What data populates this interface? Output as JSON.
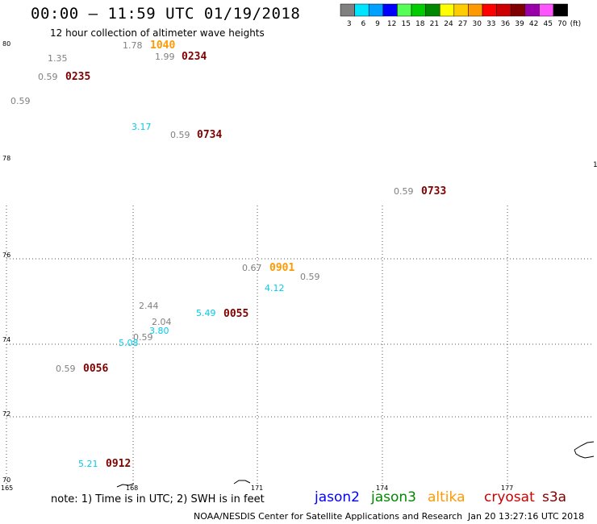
{
  "header": {
    "title": "00:00 – 11:59 UTC 01/19/2018",
    "subtitle": "12 hour collection of altimeter wave heights"
  },
  "legend": {
    "unit": "(ft)",
    "bins": [
      {
        "label": "3",
        "color": "#808080"
      },
      {
        "label": "6",
        "color": "#00e5ff"
      },
      {
        "label": "9",
        "color": "#00a0ff"
      },
      {
        "label": "12",
        "color": "#0000ff"
      },
      {
        "label": "15",
        "color": "#55ff55"
      },
      {
        "label": "18",
        "color": "#00cc00"
      },
      {
        "label": "21",
        "color": "#008800"
      },
      {
        "label": "24",
        "color": "#ffff00"
      },
      {
        "label": "27",
        "color": "#ffcc00"
      },
      {
        "label": "30",
        "color": "#ff9900"
      },
      {
        "label": "33",
        "color": "#ff0000"
      },
      {
        "label": "36",
        "color": "#cc0000"
      },
      {
        "label": "39",
        "color": "#800000"
      },
      {
        "label": "42",
        "color": "#9900aa"
      },
      {
        "label": "45",
        "color": "#ff55ff"
      },
      {
        "label": "70",
        "color": "#000000"
      }
    ]
  },
  "axes": {
    "lat_labels": [
      "80",
      "78",
      "76",
      "74",
      "72",
      "70"
    ],
    "lon_labels": [
      "165",
      "168",
      "171",
      "174",
      "177"
    ],
    "edge_label": "1"
  },
  "observations": [
    {
      "text": "1.78",
      "kind": "swh",
      "color": "#808080"
    },
    {
      "text": "1040",
      "kind": "time",
      "color": "#ff9900"
    },
    {
      "text": "1.35",
      "kind": "swh",
      "color": "#808080"
    },
    {
      "text": "1.99",
      "kind": "swh",
      "color": "#808080"
    },
    {
      "text": "0234",
      "kind": "time",
      "color": "#800000"
    },
    {
      "text": "0.59",
      "kind": "swh",
      "color": "#808080"
    },
    {
      "text": "0235",
      "kind": "time",
      "color": "#800000"
    },
    {
      "text": "0.59",
      "kind": "swh",
      "color": "#808080"
    },
    {
      "text": "3.17",
      "kind": "swh",
      "color": "#00ccee"
    },
    {
      "text": "0.59",
      "kind": "swh",
      "color": "#808080"
    },
    {
      "text": "0734",
      "kind": "time",
      "color": "#800000"
    },
    {
      "text": "0.59",
      "kind": "swh",
      "color": "#808080"
    },
    {
      "text": "0733",
      "kind": "time",
      "color": "#800000"
    },
    {
      "text": "0.67",
      "kind": "swh",
      "color": "#808080"
    },
    {
      "text": "0901",
      "kind": "time",
      "color": "#ff9900"
    },
    {
      "text": "0.59",
      "kind": "swh",
      "color": "#808080"
    },
    {
      "text": "4.12",
      "kind": "swh",
      "color": "#00ccee"
    },
    {
      "text": "2.44",
      "kind": "swh",
      "color": "#808080"
    },
    {
      "text": "5.49",
      "kind": "swh",
      "color": "#00ccee"
    },
    {
      "text": "0055",
      "kind": "time",
      "color": "#800000"
    },
    {
      "text": "2.04",
      "kind": "swh",
      "color": "#808080"
    },
    {
      "text": "3.80",
      "kind": "swh",
      "color": "#00ccee"
    },
    {
      "text": "0.59",
      "kind": "swh",
      "color": "#808080"
    },
    {
      "text": "5.08",
      "kind": "swh",
      "color": "#00ccee"
    },
    {
      "text": "0.59",
      "kind": "swh",
      "color": "#808080"
    },
    {
      "text": "0056",
      "kind": "time",
      "color": "#800000"
    },
    {
      "text": "5.21",
      "kind": "swh",
      "color": "#00ccee"
    },
    {
      "text": "0912",
      "kind": "time",
      "color": "#800000"
    }
  ],
  "footer": {
    "note": "note: 1) Time is in UTC; 2) SWH is in feet",
    "satellites": [
      {
        "name": "jason2",
        "color": "#0000ff"
      },
      {
        "name": "jason3",
        "color": "#008800"
      },
      {
        "name": "altika",
        "color": "#ff9900"
      },
      {
        "name": "cryosat",
        "color": "#cc0000"
      },
      {
        "name": "s3a",
        "color": "#800000"
      }
    ],
    "credit": "NOAA/NESDIS Center for Satellite Applications and Research",
    "timestamp": "Jan 20 13:27:16 UTC 2018"
  }
}
